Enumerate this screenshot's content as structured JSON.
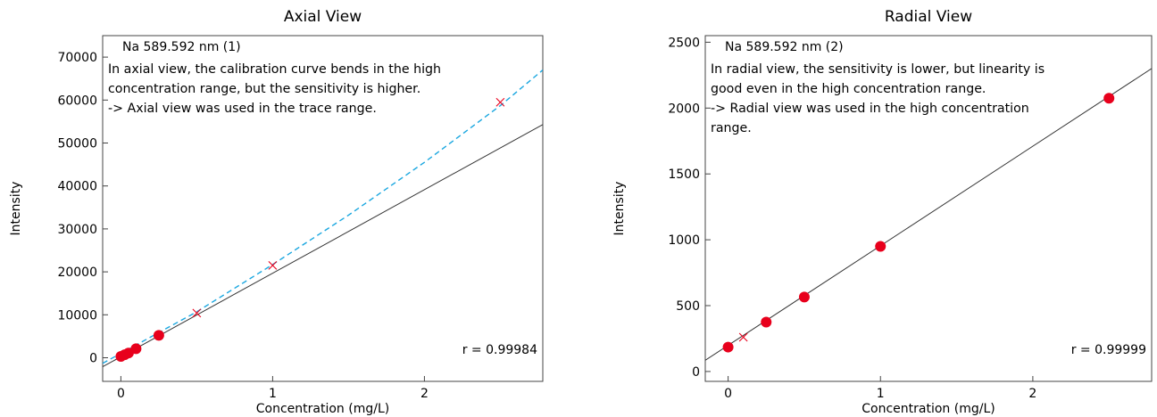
{
  "chart_data": [
    {
      "type": "scatter",
      "title": "Axial View",
      "xlabel": "Concentration (mg/L)",
      "ylabel": "Intensity",
      "xlim": [
        -0.12,
        2.78
      ],
      "ylim": [
        -5500,
        75000
      ],
      "xticks": [
        0,
        1,
        2
      ],
      "yticks": [
        0,
        10000,
        20000,
        30000,
        40000,
        50000,
        60000,
        70000
      ],
      "element_label": "Na 589.592 nm (1)",
      "annotation_lines": [
        "In axial view, the calibration curve bends in the high",
        "concentration range, but the sensitivity is higher.",
        "-> Axial view was used in the trace range."
      ],
      "r_text": "r = 0.99984",
      "used_points": {
        "x": [
          0,
          0.025,
          0.05,
          0.1,
          0.25
        ],
        "y": [
          300,
          700,
          1100,
          2100,
          5200
        ]
      },
      "unused_points": {
        "x": [
          0.5,
          1.0,
          2.5
        ],
        "y": [
          10400,
          21500,
          59500
        ]
      },
      "linear_fit": {
        "x": [
          -0.12,
          2.78
        ],
        "y": [
          -2100,
          54300
        ]
      },
      "curve_fit": {
        "x": [
          -0.12,
          0.5,
          1.0,
          1.5,
          2.0,
          2.5,
          2.78
        ],
        "y": [
          -1300,
          10700,
          21700,
          33200,
          45500,
          58700,
          67000
        ]
      },
      "grid": false,
      "colors": {
        "used": "#e8001c",
        "unused": "#e8001c",
        "linear_fit": "#333333",
        "curve_fit": "#1aa7e0"
      }
    },
    {
      "type": "scatter",
      "title": "Radial View",
      "xlabel": "Concentration (mg/L)",
      "ylabel": "Intensity",
      "xlim": [
        -0.15,
        2.78
      ],
      "ylim": [
        -75,
        2550
      ],
      "xticks": [
        0,
        1,
        2
      ],
      "yticks": [
        0,
        500,
        1000,
        1500,
        2000,
        2500
      ],
      "element_label": "Na 589.592 nm (2)",
      "annotation_lines": [
        "In radial view, the sensitivity is lower, but linearity is",
        "good even in the high concentration range.",
        "-> Radial view was used in the high concentration",
        "range."
      ],
      "r_text": "r = 0.99999",
      "used_points": {
        "x": [
          0,
          0.25,
          0.5,
          1.0,
          2.5
        ],
        "y": [
          185,
          375,
          565,
          950,
          2075
        ]
      },
      "unused_points": {
        "x": [
          0.1
        ],
        "y": [
          260
        ]
      },
      "linear_fit": {
        "x": [
          -0.15,
          2.78
        ],
        "y": [
          85,
          2300
        ]
      },
      "grid": false,
      "colors": {
        "used": "#e8001c",
        "unused": "#e8001c",
        "linear_fit": "#333333"
      }
    }
  ]
}
